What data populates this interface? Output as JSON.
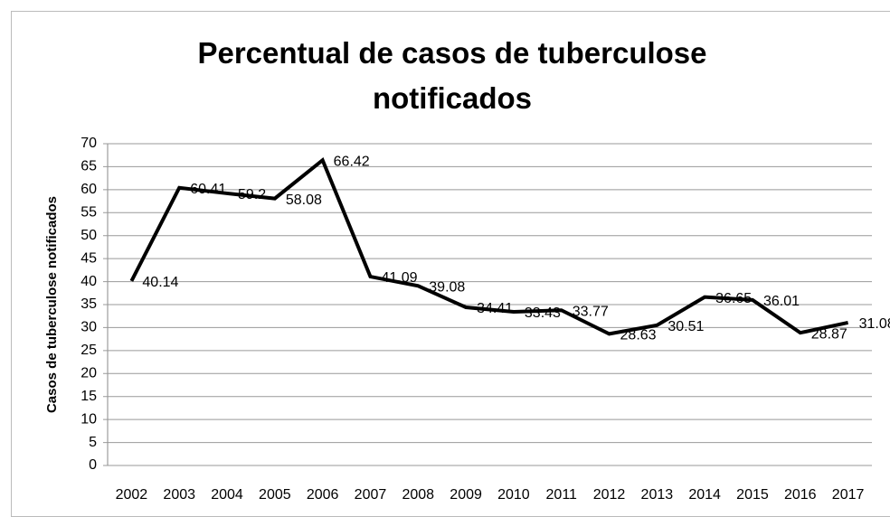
{
  "chart_data": {
    "type": "line",
    "title": "Percentual de casos de tuberculose notificados",
    "y_label": "Casos de tuberculose notificados",
    "categories": [
      "2002",
      "2003",
      "2004",
      "2005",
      "2006",
      "2007",
      "2008",
      "2009",
      "2010",
      "2011",
      "2012",
      "2013",
      "2014",
      "2015",
      "2016",
      "2017"
    ],
    "series": [
      {
        "name": "Casos",
        "color": "#000000",
        "values": [
          40.14,
          60.41,
          59.2,
          58.08,
          66.42,
          41.09,
          39.08,
          34.41,
          33.43,
          33.77,
          28.63,
          30.51,
          36.65,
          36.01,
          28.87,
          31.08
        ]
      }
    ],
    "ylim": [
      0,
      70
    ],
    "yticks": [
      0,
      5,
      10,
      15,
      20,
      25,
      30,
      35,
      40,
      45,
      50,
      55,
      60,
      65,
      70
    ],
    "grid": true,
    "data_labels": true
  }
}
